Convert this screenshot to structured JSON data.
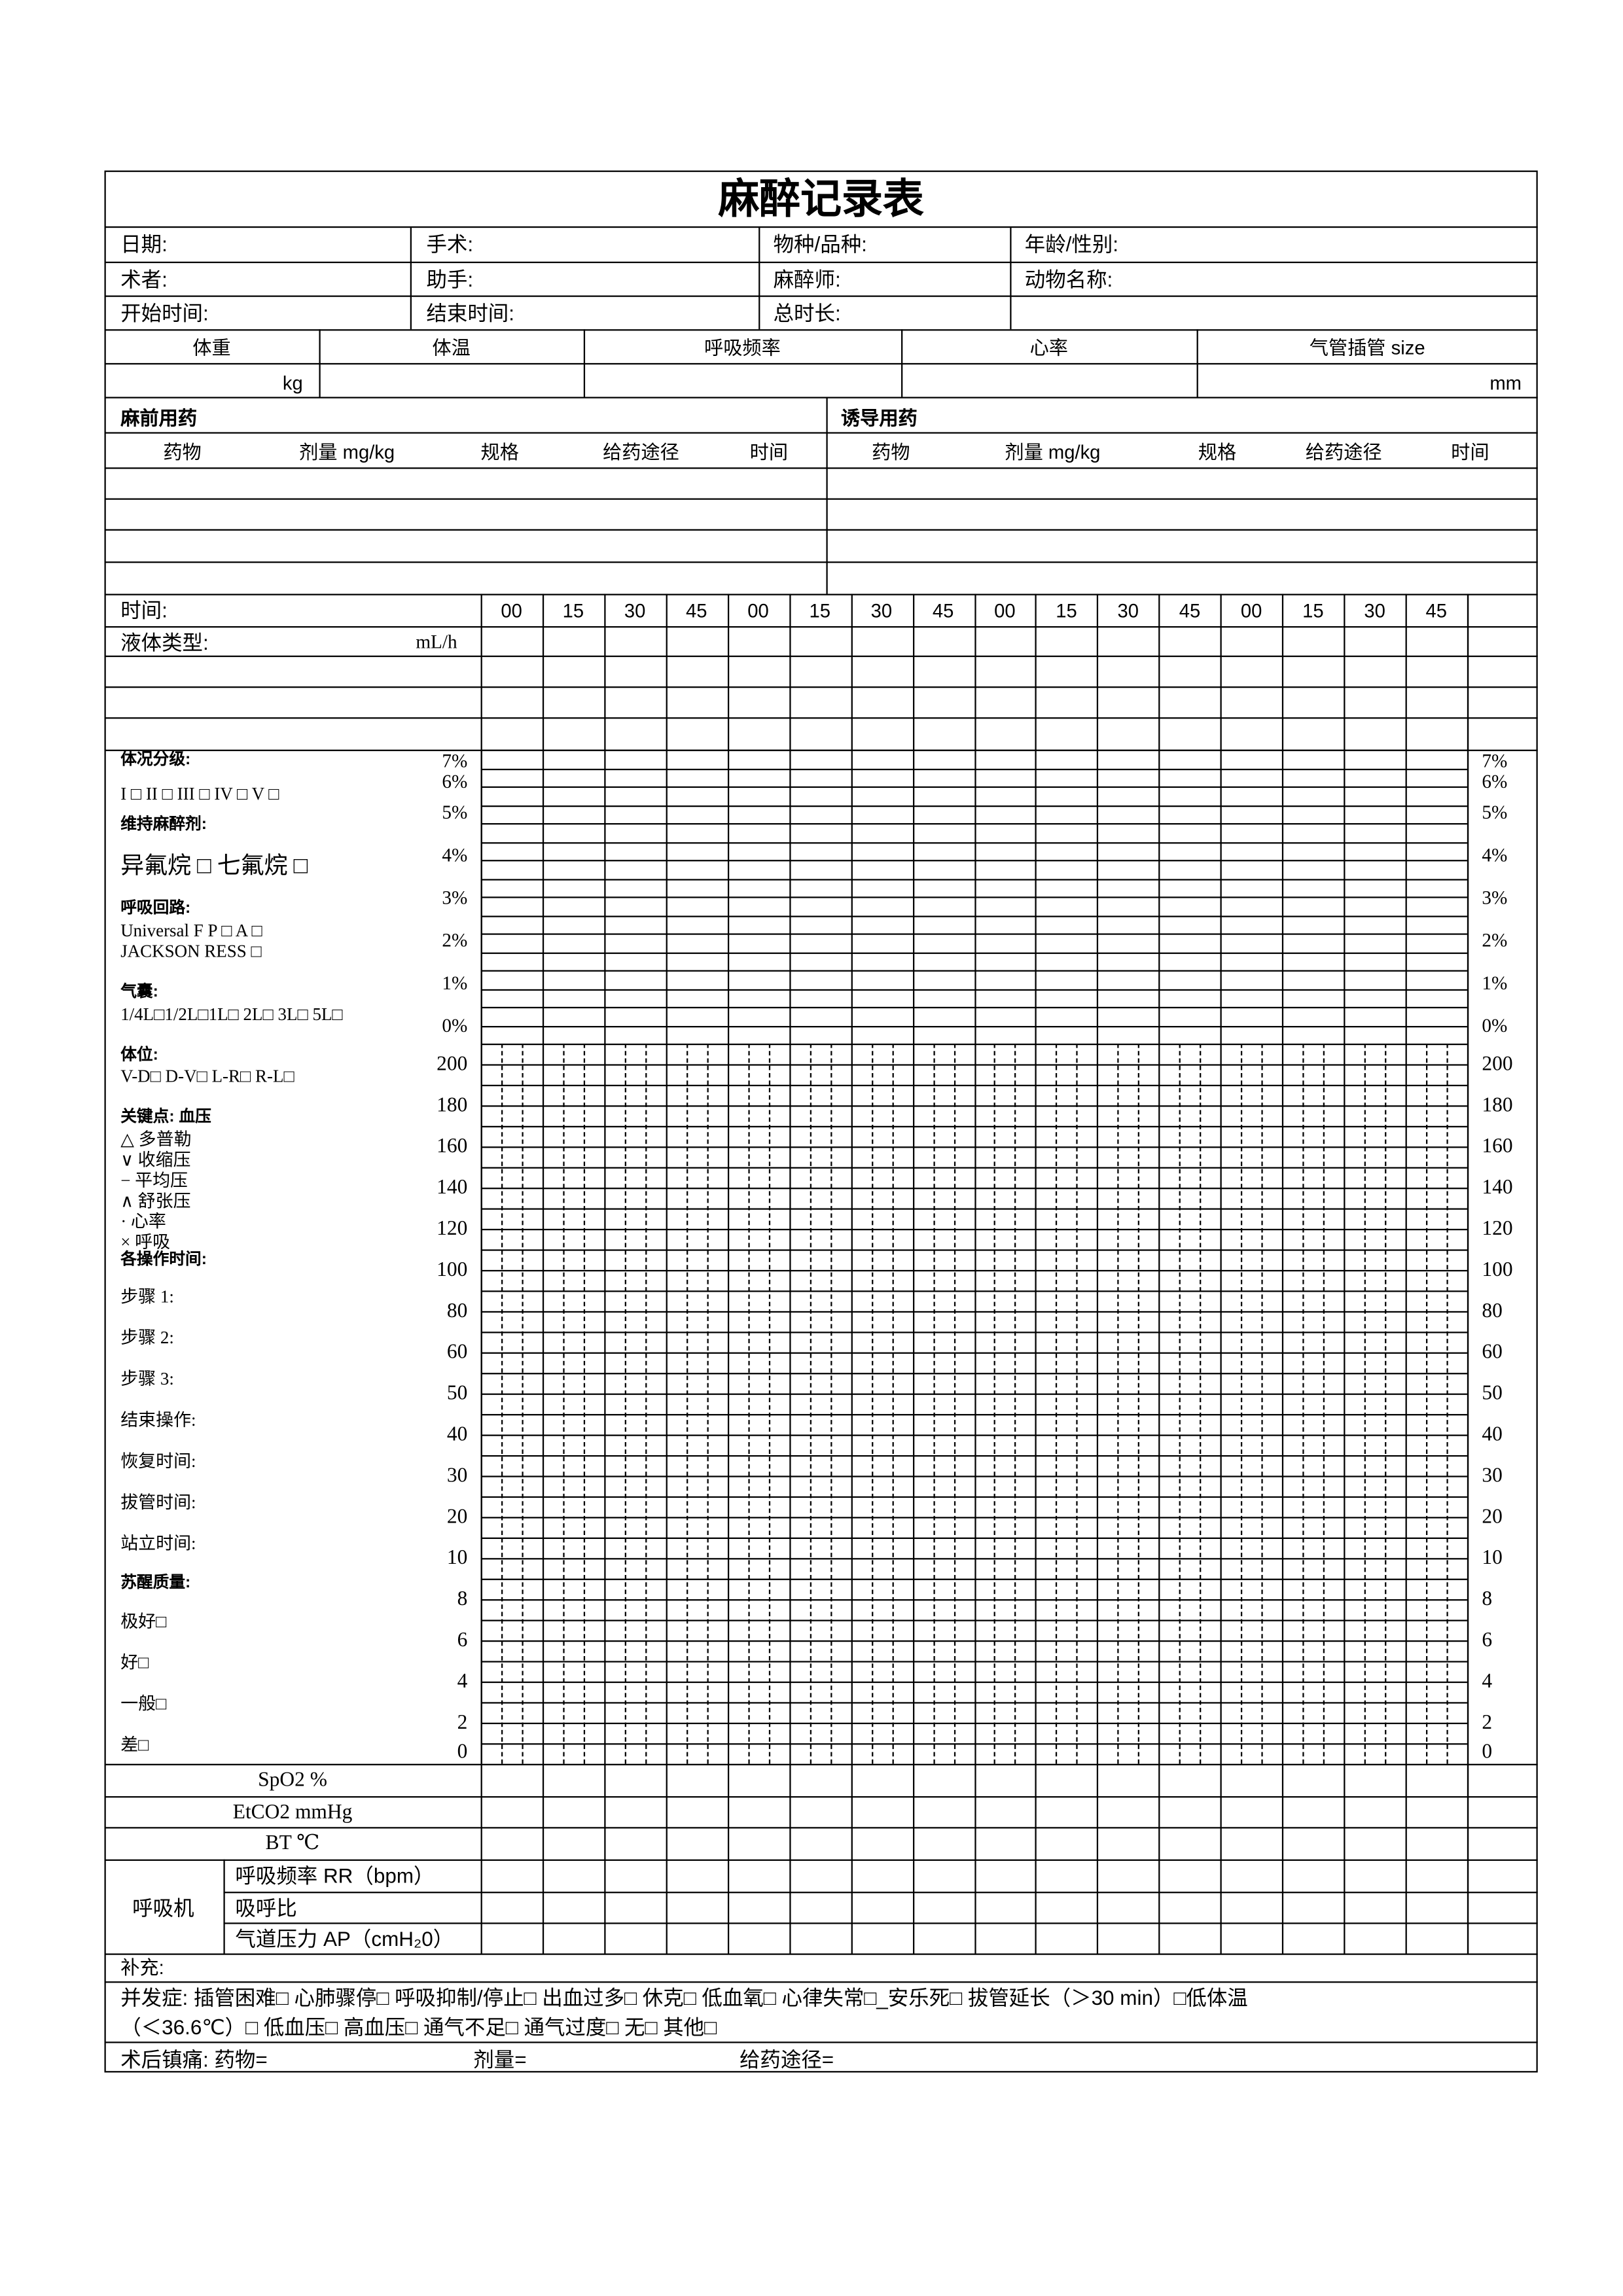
{
  "title": "麻醉记录表",
  "info_rows": [
    [
      "日期:",
      "手术:",
      "物种/品种:",
      "年龄/性别:"
    ],
    [
      "术者:",
      "助手:",
      "麻醉师:",
      "动物名称:"
    ],
    [
      "开始时间:",
      "结束时间:",
      "总时长:",
      ""
    ]
  ],
  "vitals": {
    "headers": [
      "体重",
      "体温",
      "呼吸频率",
      "心率",
      "气管插管  size"
    ],
    "units": [
      "kg",
      "",
      "",
      "",
      "mm"
    ]
  },
  "premed": {
    "title": "麻前用药",
    "columns": [
      "药物",
      "剂量 mg/kg",
      "规格",
      "给药途径",
      "时间"
    ]
  },
  "induction": {
    "title": "诱导用药",
    "columns": [
      "药物",
      "剂量 mg/kg",
      "规格",
      "给药途径",
      "时间"
    ]
  },
  "time_row": {
    "label": "时间:",
    "times": [
      "00",
      "15",
      "30",
      "45",
      "00",
      "15",
      "30",
      "45",
      "00",
      "15",
      "30",
      "45",
      "00",
      "15",
      "30",
      "45"
    ]
  },
  "fluid_row": {
    "label": "液体类型:",
    "unit": "mL/h"
  },
  "gas_scale": [
    "7%",
    "6%",
    "5%",
    "4%",
    "3%",
    "2%",
    "1%",
    "0%"
  ],
  "bp_scale": [
    "200",
    "180",
    "160",
    "140",
    "120",
    "100",
    "80",
    "60",
    "50",
    "40",
    "30",
    "20",
    "10",
    "8",
    "6",
    "4",
    "2",
    "0"
  ],
  "left_panel": [
    {
      "text": "体况分级:",
      "bold": true
    },
    {
      "text": "I □   II □   III  □   IV  □   V   □"
    },
    {
      "text": "维持麻醉剂:",
      "bold": true
    },
    {
      "text": "异氟烷  □      七氟烷  □",
      "large": true
    },
    {
      "text": "呼吸回路:",
      "bold": true
    },
    {
      "text": "Universal F       P  □    A  □"
    },
    {
      "text": "JACKSON RESS            □"
    },
    {
      "text": "气囊:",
      "bold": true
    },
    {
      "text": "1/4L□1/2L□1L□  2L□  3L□  5L□"
    },
    {
      "text": "体位:",
      "bold": true
    },
    {
      "text": "V-D□      D-V□      L-R□   R-L□"
    },
    {
      "text": "关键点:  血压",
      "bold": true
    },
    {
      "text": "      △      多普勒"
    },
    {
      "text": "      ∨      收缩压"
    },
    {
      "text": "      −      平均压"
    },
    {
      "text": "      ∧      舒张压"
    },
    {
      "text": "      ·     心率"
    },
    {
      "text": "      ×      呼吸"
    },
    {
      "text": "各操作时间:",
      "bold": true
    },
    {
      "text": "步骤 1:"
    },
    {
      "text": "步骤 2:"
    },
    {
      "text": "步骤 3:"
    },
    {
      "text": "结束操作:"
    },
    {
      "text": "恢复时间:"
    },
    {
      "text": "拔管时间:"
    },
    {
      "text": "站立时间:"
    },
    {
      "text": "苏醒质量:",
      "bold": true
    },
    {
      "text": "极好□"
    },
    {
      "text": "   好□"
    },
    {
      "text": "一般□"
    },
    {
      "text": "   差□"
    }
  ],
  "monitor_rows": [
    "SpO2 %",
    "EtCO2 mmHg",
    "BT  ℃"
  ],
  "ventilator": {
    "label": "呼吸机",
    "rows": [
      "呼吸频率 RR（bpm）",
      "吸呼比",
      "气道压力 AP（cmH₂0）"
    ]
  },
  "supplement": "补充:",
  "complications": {
    "line1": "并发症:  插管困难□   心肺骤停□   呼吸抑制/停止□   出血过多□   休克□   低血氧□   心律失常□_安乐死□   拔管延长（＞30 min）□低体温",
    "line2": "（＜36.6℃）□     低血压□     高血压□     通气不足□     通气过度□     无□     其他□"
  },
  "analgesia": {
    "label": "术后镇痛:  药物=",
    "dose": "剂量=",
    "route": "给药途径="
  }
}
